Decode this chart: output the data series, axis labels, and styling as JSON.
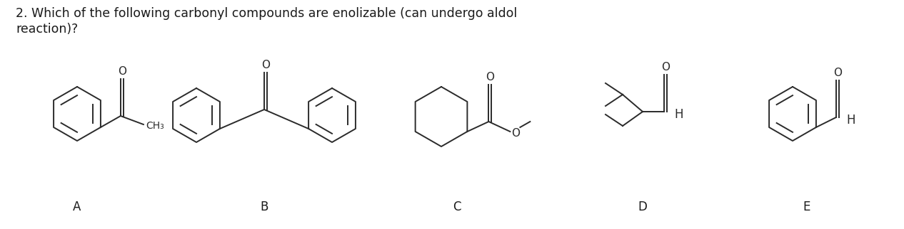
{
  "title_line1": "2. Which of the following carbonyl compounds are enolizable (can undergo aldol",
  "title_line2": "reaction)?",
  "labels": [
    "A",
    "B",
    "C",
    "D",
    "E"
  ],
  "background_color": "#ffffff",
  "text_color": "#1a1a1a",
  "title_fontsize": 12.5,
  "label_fontsize": 12,
  "line_color": "#2a2a2a",
  "line_width": 1.4,
  "fig_width": 12.66,
  "fig_height": 3.22,
  "dpi": 100
}
